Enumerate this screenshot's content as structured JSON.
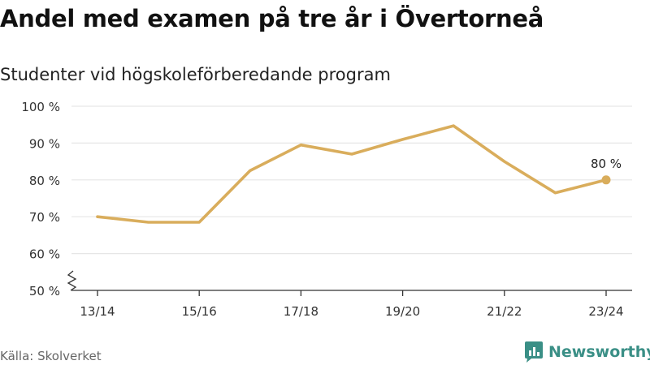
{
  "header": {
    "title": "Andel med examen på tre år i Övertorneå",
    "subtitle": "Studenter vid högskoleförberedande program"
  },
  "footer": {
    "source": "Källa: Skolverket",
    "brand": "Newsworthy",
    "brand_icon": "newsworthy-logo-icon"
  },
  "colors": {
    "line": "#d9ad5c",
    "grid": "#e6e6e6",
    "axis": "#333333",
    "brand": "#3a8f86"
  },
  "chart_data": {
    "type": "line",
    "title": "Andel med examen på tre år i Övertorneå",
    "subtitle": "Studenter vid högskoleförberedande program",
    "xlabel": "",
    "ylabel": "",
    "categories": [
      "13/14",
      "14/15",
      "15/16",
      "16/17",
      "17/18",
      "18/19",
      "19/20",
      "20/21",
      "21/22",
      "22/23",
      "23/24"
    ],
    "x_tick_labels": [
      "13/14",
      "15/16",
      "17/18",
      "19/20",
      "21/22",
      "23/24"
    ],
    "series": [
      {
        "values": [
          70,
          68.5,
          68.5,
          82.5,
          89.5,
          87,
          91,
          94.7,
          85,
          76.5,
          80
        ]
      }
    ],
    "y_ticks": [
      50,
      60,
      70,
      80,
      90,
      100
    ],
    "y_tick_labels": [
      "50 %",
      "60 %",
      "70 %",
      "80 %",
      "90 %",
      "100 %"
    ],
    "ylim": [
      50,
      100
    ],
    "axis_break": true,
    "grid": true,
    "legend": "none",
    "annotations": [
      {
        "category": "23/24",
        "value": 80,
        "text": "80 %"
      }
    ]
  }
}
